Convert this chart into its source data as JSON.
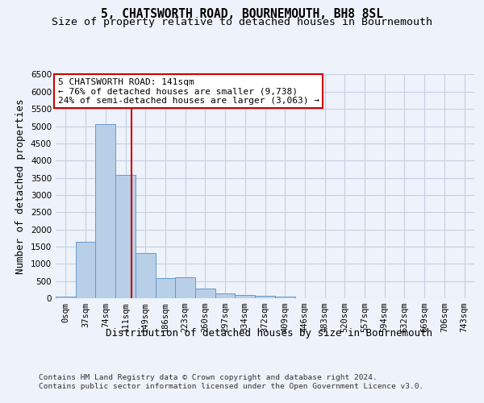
{
  "title": "5, CHATSWORTH ROAD, BOURNEMOUTH, BH8 8SL",
  "subtitle": "Size of property relative to detached houses in Bournemouth",
  "xlabel": "Distribution of detached houses by size in Bournemouth",
  "ylabel": "Number of detached properties",
  "footer_line1": "Contains HM Land Registry data © Crown copyright and database right 2024.",
  "footer_line2": "Contains public sector information licensed under the Open Government Licence v3.0.",
  "bin_labels": [
    "0sqm",
    "37sqm",
    "74sqm",
    "111sqm",
    "149sqm",
    "186sqm",
    "223sqm",
    "260sqm",
    "297sqm",
    "334sqm",
    "372sqm",
    "409sqm",
    "446sqm",
    "483sqm",
    "520sqm",
    "557sqm",
    "594sqm",
    "632sqm",
    "669sqm",
    "706sqm",
    "743sqm"
  ],
  "bar_values": [
    50,
    1630,
    5050,
    3580,
    1320,
    580,
    620,
    270,
    130,
    100,
    60,
    55,
    10,
    5,
    0,
    0,
    0,
    0,
    0,
    0,
    0
  ],
  "bar_color": "#b8cfe8",
  "bar_edge_color": "#6899c8",
  "vline_color": "#cc0000",
  "annotation_box_text": "5 CHATSWORTH ROAD: 141sqm\n← 76% of detached houses are smaller (9,738)\n24% of semi-detached houses are larger (3,063) →",
  "annotation_box_color": "#cc0000",
  "ylim": [
    0,
    6500
  ],
  "bg_color": "#eef2fa",
  "plot_bg_color": "#eef2fa",
  "grid_color": "#c5cfe0",
  "title_fontsize": 10.5,
  "subtitle_fontsize": 9.5,
  "axis_label_fontsize": 9,
  "tick_fontsize": 7.5,
  "footer_fontsize": 6.8,
  "annotation_fontsize": 8.0
}
